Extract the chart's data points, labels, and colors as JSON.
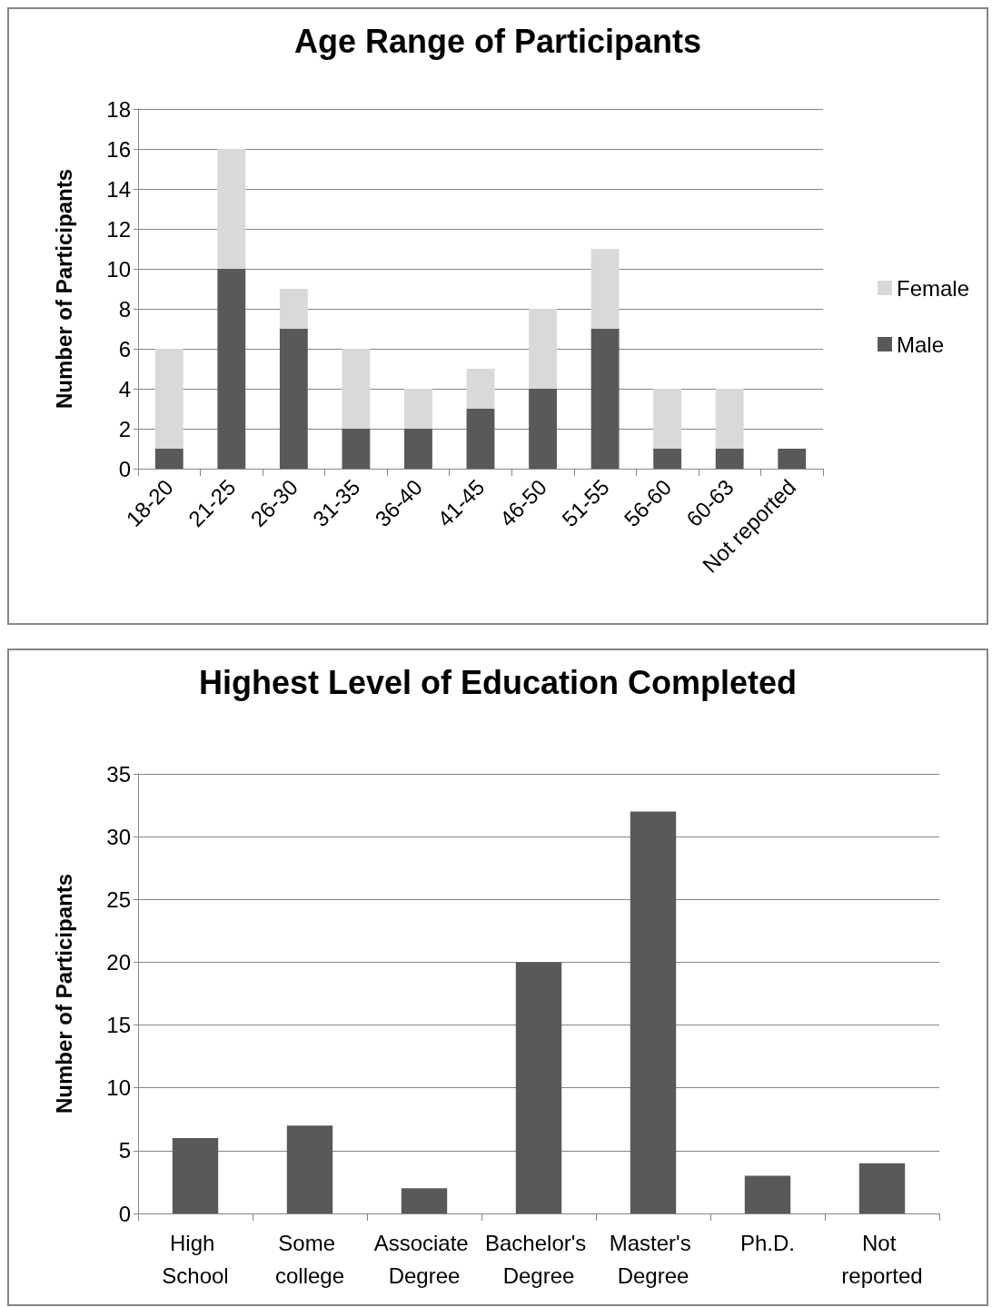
{
  "chart_data": [
    {
      "type": "bar",
      "title": "Age Range of Participants",
      "ylabel": "Number of Participants",
      "categories": [
        "18-20",
        "21-25",
        "26-30",
        "31-35",
        "36-40",
        "41-45",
        "46-50",
        "51-55",
        "56-60",
        "60-63",
        "Not reported"
      ],
      "stacked": true,
      "series": [
        {
          "name": "Male",
          "color": "#595959",
          "values": [
            1,
            10,
            7,
            2,
            2,
            3,
            4,
            7,
            1,
            1,
            1
          ]
        },
        {
          "name": "Female",
          "color": "#d9d9d9",
          "values": [
            5,
            6,
            2,
            4,
            2,
            2,
            4,
            4,
            3,
            3,
            0
          ]
        }
      ],
      "ylim": [
        0,
        18
      ],
      "yticks": [
        0,
        2,
        4,
        6,
        8,
        10,
        12,
        14,
        16,
        18
      ],
      "grid": "y",
      "legend": "right"
    },
    {
      "type": "bar",
      "title": "Highest Level of Education Completed",
      "ylabel": "Number of Participants",
      "categories": [
        "High School",
        "Some college",
        "Associate Degree",
        "Bachelor's Degree",
        "Master's Degree",
        "Ph.D.",
        "Not reported"
      ],
      "values": [
        6,
        7,
        2,
        20,
        32,
        3,
        4
      ],
      "color": "#595959",
      "ylim": [
        0,
        35
      ],
      "yticks": [
        0,
        5,
        10,
        15,
        20,
        25,
        30,
        35
      ],
      "grid": "y"
    }
  ]
}
